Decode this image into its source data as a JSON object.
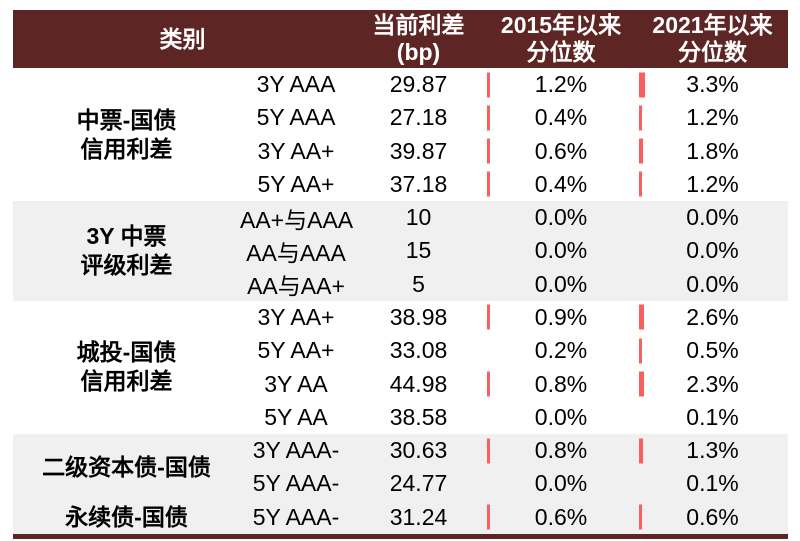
{
  "chart_data": {
    "type": "table",
    "category_header": "类别",
    "col_headers": [
      {
        "line1": "当前利差",
        "line2": "(bp)"
      },
      {
        "line1": "2015年以来",
        "line2": "分位数"
      },
      {
        "line1": "2021年以来",
        "line2": "分位数"
      }
    ],
    "groups": [
      {
        "label_lines": [
          "中票-国债",
          "信用利差"
        ],
        "shaded": false,
        "rows": [
          {
            "name": "3Y AAA",
            "spread": "29.87",
            "pct_2015": "1.2%",
            "pct_2021": "3.3%"
          },
          {
            "name": "5Y AAA",
            "spread": "27.18",
            "pct_2015": "0.4%",
            "pct_2021": "1.2%"
          },
          {
            "name": "3Y AA+",
            "spread": "39.87",
            "pct_2015": "0.6%",
            "pct_2021": "1.8%"
          },
          {
            "name": "5Y AA+",
            "spread": "37.18",
            "pct_2015": "0.4%",
            "pct_2021": "1.2%"
          }
        ]
      },
      {
        "label_lines": [
          "3Y 中票",
          "评级利差"
        ],
        "shaded": true,
        "rows": [
          {
            "name": "AA+与AAA",
            "spread": "10",
            "pct_2015": "0.0%",
            "pct_2021": "0.0%"
          },
          {
            "name": "AA与AAA",
            "spread": "15",
            "pct_2015": "0.0%",
            "pct_2021": "0.0%"
          },
          {
            "name": "AA与AA+",
            "spread": "5",
            "pct_2015": "0.0%",
            "pct_2021": "0.0%"
          }
        ]
      },
      {
        "label_lines": [
          "城投-国债",
          "信用利差"
        ],
        "shaded": false,
        "rows": [
          {
            "name": "3Y AA+",
            "spread": "38.98",
            "pct_2015": "0.9%",
            "pct_2021": "2.6%"
          },
          {
            "name": "5Y AA+",
            "spread": "33.08",
            "pct_2015": "0.2%",
            "pct_2021": "0.5%"
          },
          {
            "name": "3Y AA",
            "spread": "44.98",
            "pct_2015": "0.8%",
            "pct_2021": "2.3%"
          },
          {
            "name": "5Y AA",
            "spread": "38.58",
            "pct_2015": "0.0%",
            "pct_2021": "0.1%"
          }
        ]
      },
      {
        "label_lines": [
          "二级资本债-国债"
        ],
        "shaded": true,
        "rows": [
          {
            "name": "3Y AAA-",
            "spread": "30.63",
            "pct_2015": "0.8%",
            "pct_2021": "1.3%"
          },
          {
            "name": "5Y AAA-",
            "spread": "24.77",
            "pct_2015": "0.0%",
            "pct_2021": "0.1%"
          }
        ]
      },
      {
        "label_lines": [
          "永续债-国债"
        ],
        "shaded": true,
        "rows": [
          {
            "name": "5Y AAA-",
            "spread": "31.24",
            "pct_2015": "0.6%",
            "pct_2021": "0.6%"
          }
        ]
      }
    ],
    "colors": {
      "header_bg": "#5E2525",
      "stripe_bg": "#F0F0F0",
      "bar": "#FA5F5F",
      "header_text": "#FFFFFF",
      "body_text": "#000000"
    }
  }
}
